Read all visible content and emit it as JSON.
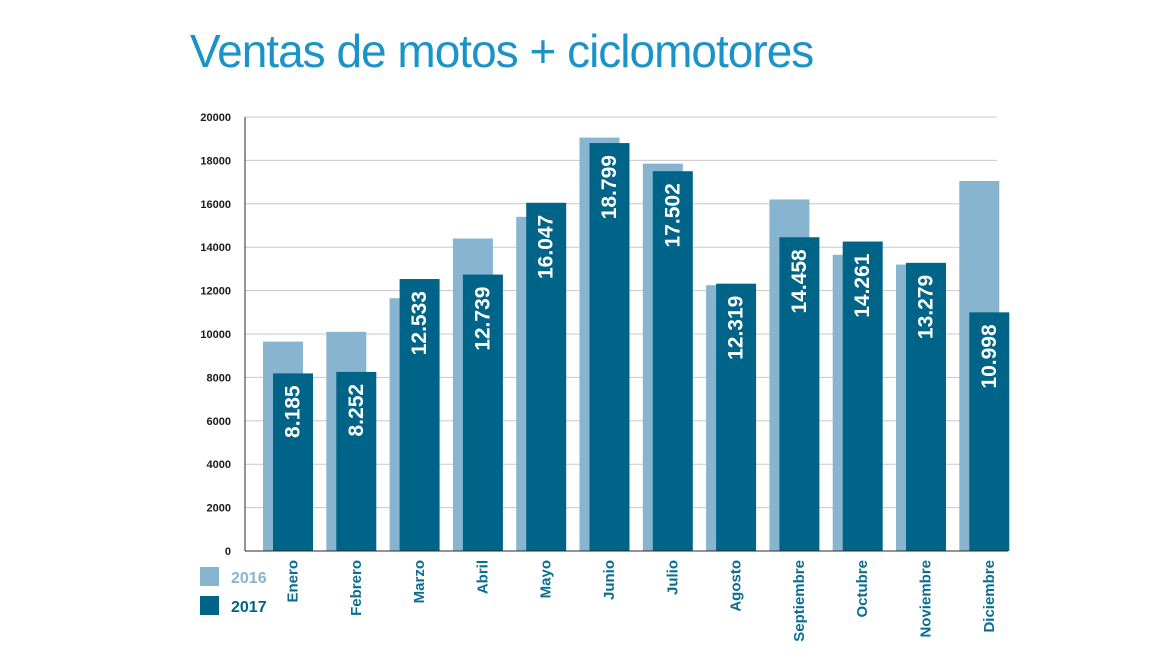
{
  "chart_data": {
    "type": "bar",
    "title": "Ventas de motos + ciclomotores",
    "xlabel": "",
    "ylabel": "",
    "ylim": [
      0,
      20000
    ],
    "yticks": [
      0,
      2000,
      4000,
      6000,
      8000,
      10000,
      12000,
      14000,
      16000,
      18000,
      20000
    ],
    "grid": true,
    "legend": "bottom-left",
    "categories": [
      "Enero",
      "Febrero",
      "Marzo",
      "Abril",
      "Mayo",
      "Junio",
      "Julio",
      "Agosto",
      "Septiembre",
      "Octubre",
      "Noviembre",
      "Diciembre"
    ],
    "series": [
      {
        "name": "2016",
        "color": "#87b5d0",
        "values": [
          9650,
          10100,
          11650,
          14400,
          15400,
          19050,
          17850,
          12250,
          16200,
          13650,
          13200,
          17050
        ]
      },
      {
        "name": "2017",
        "color": "#006488",
        "values": [
          8185,
          8252,
          12533,
          12739,
          16047,
          18799,
          17502,
          12319,
          14458,
          14261,
          13279,
          10998
        ],
        "data_labels": [
          "8.185",
          "8.252",
          "12.533",
          "12.739",
          "16.047",
          "18.799",
          "17.502",
          "12.319",
          "14.458",
          "14.261",
          "13.279",
          "10.998"
        ]
      }
    ]
  }
}
